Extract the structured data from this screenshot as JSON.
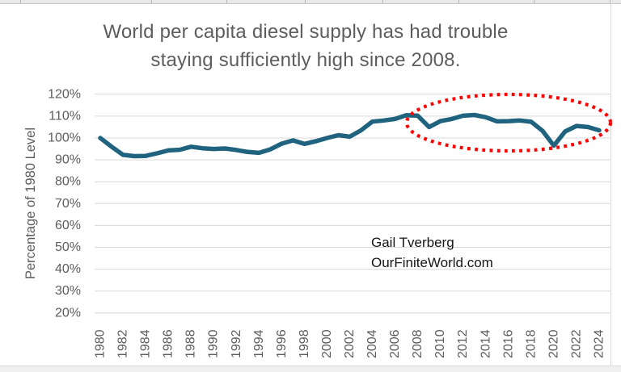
{
  "chart_data": {
    "type": "line",
    "title_lines": [
      "World per capita diesel supply has had trouble",
      "staying sufficiently high since 2008."
    ],
    "title": "World per capita diesel supply has had trouble staying sufficiently high since 2008.",
    "ylabel": "Percentage of 1980 Level",
    "xlabel": "",
    "x": [
      1980,
      1981,
      1982,
      1983,
      1984,
      1985,
      1986,
      1987,
      1988,
      1989,
      1990,
      1991,
      1992,
      1993,
      1994,
      1995,
      1996,
      1997,
      1998,
      1999,
      2000,
      2001,
      2002,
      2003,
      2004,
      2005,
      2006,
      2007,
      2008,
      2009,
      2010,
      2011,
      2012,
      2013,
      2014,
      2015,
      2016,
      2017,
      2018,
      2019,
      2020,
      2021,
      2022,
      2023,
      2024
    ],
    "values": [
      100,
      96,
      92.3,
      91.7,
      91.8,
      93,
      94.3,
      94.6,
      96,
      95.3,
      95,
      95.2,
      94.5,
      93.6,
      93.2,
      94.8,
      97.4,
      98.9,
      97.3,
      98.5,
      100,
      101.3,
      100.6,
      103.5,
      107.5,
      108,
      108.7,
      110.4,
      110.2,
      105,
      107.7,
      108.7,
      110.2,
      110.5,
      109.5,
      107.6,
      107.7,
      108,
      107.4,
      103.3,
      96.5,
      103,
      105.5,
      105,
      103.5
    ],
    "x_tick_labels": [
      "1980",
      "1982",
      "1984",
      "1986",
      "1988",
      "1990",
      "1992",
      "1994",
      "1996",
      "1998",
      "2000",
      "2002",
      "2004",
      "2006",
      "2008",
      "2010",
      "2012",
      "2014",
      "2016",
      "2018",
      "2020",
      "2022",
      "2024"
    ],
    "y_tick_labels": [
      "120%",
      "110%",
      "100%",
      "90%",
      "80%",
      "70%",
      "60%",
      "50%",
      "40%",
      "30%",
      "20%"
    ],
    "y_tick_values": [
      120,
      110,
      100,
      90,
      80,
      70,
      60,
      50,
      40,
      30,
      20
    ],
    "ylim": [
      20,
      120
    ],
    "grid": "horizontal-only",
    "legend": "none",
    "line_color": "#1f637f",
    "annotation": {
      "shape": "dotted-ellipse",
      "color": "#ff0000",
      "note": "circles the period 2007-2024 where supply struggles"
    },
    "watermark_lines": [
      "Gail Tverberg",
      "OurFiniteWorld.com"
    ]
  }
}
